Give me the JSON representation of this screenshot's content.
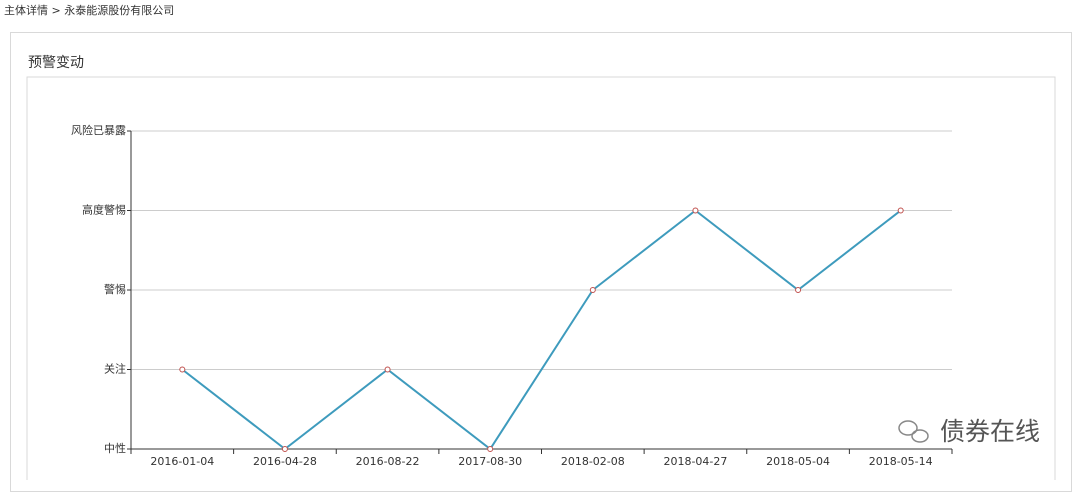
{
  "breadcrumb": "主体详情 > 永泰能源股份有限公司",
  "watermark": "债券在线",
  "chart_data": {
    "type": "line",
    "title": "预警变动",
    "categories": [
      "2016-01-04",
      "2016-04-28",
      "2016-08-22",
      "2017-08-30",
      "2018-02-08",
      "2018-04-27",
      "2018-05-04",
      "2018-05-14"
    ],
    "values": [
      1,
      0,
      1,
      0,
      2,
      3,
      2,
      3
    ],
    "color": "#3e9bbd",
    "marker_color": "#c0504d",
    "ylim": [
      0,
      4
    ],
    "yticks": [
      {
        "value": 0,
        "label": "中性"
      },
      {
        "value": 1,
        "label": "关注"
      },
      {
        "value": 2,
        "label": "警惕"
      },
      {
        "value": 3,
        "label": "高度警惕"
      },
      {
        "value": 4,
        "label": "风险已暴露"
      }
    ],
    "grid": true
  }
}
